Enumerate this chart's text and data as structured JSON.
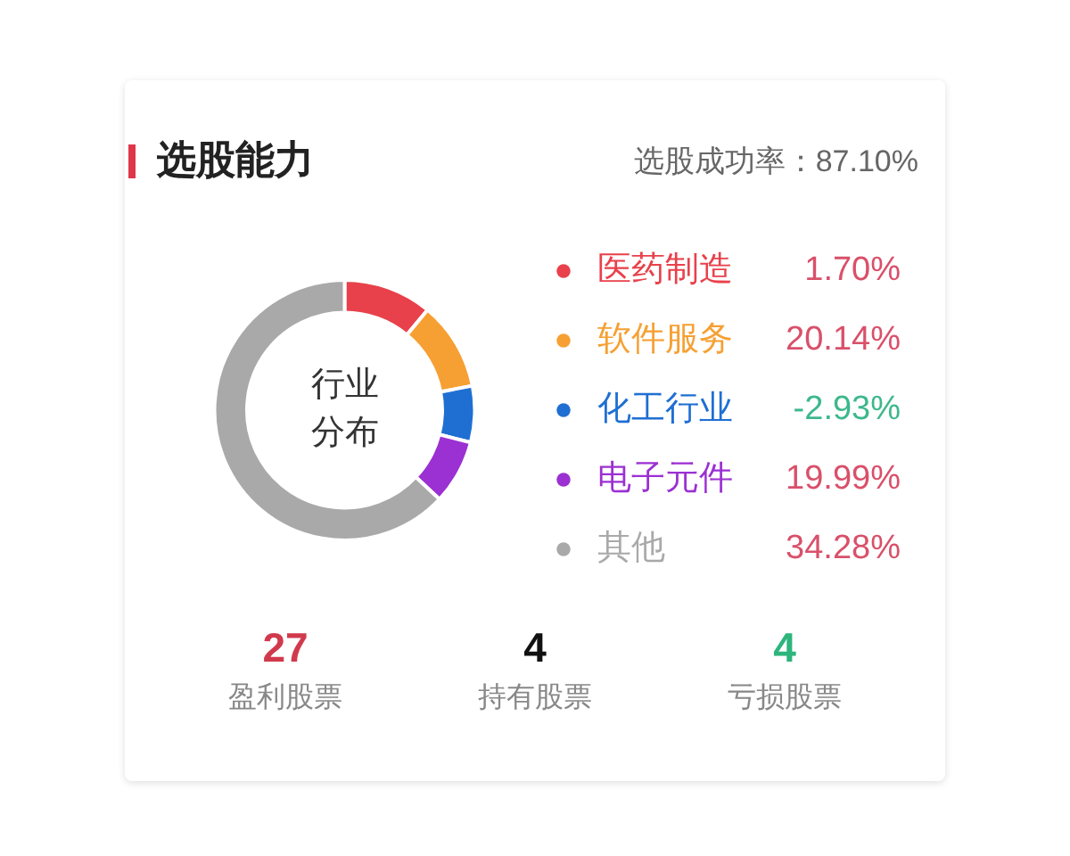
{
  "chart_data": [
    {
      "type": "donut",
      "title": "选股能力",
      "subtitle": "选股成功率：87.10%",
      "categories": [
        "医药制造",
        "软件服务",
        "化工行业",
        "电子元件",
        "其他"
      ],
      "values": [
        11,
        11,
        7,
        8,
        63
      ],
      "colors": [
        "#e8414b",
        "#f6a033",
        "#1f6fd3",
        "#9b30d3",
        "#a9a9a9"
      ],
      "legend": "right",
      "annotations": [
        "行业分布",
        "1.70%",
        "20.14%",
        "-2.93%",
        "19.99%",
        "34.28%"
      ]
    },
    {
      "type": "other",
      "categories": [
        "盈利股票",
        "持有股票",
        "亏损股票"
      ],
      "values": [
        27,
        4,
        4
      ],
      "colors": [
        "#d13a4c",
        "#111111",
        "#2db57c"
      ],
      "data_labels": true
    }
  ]
}
